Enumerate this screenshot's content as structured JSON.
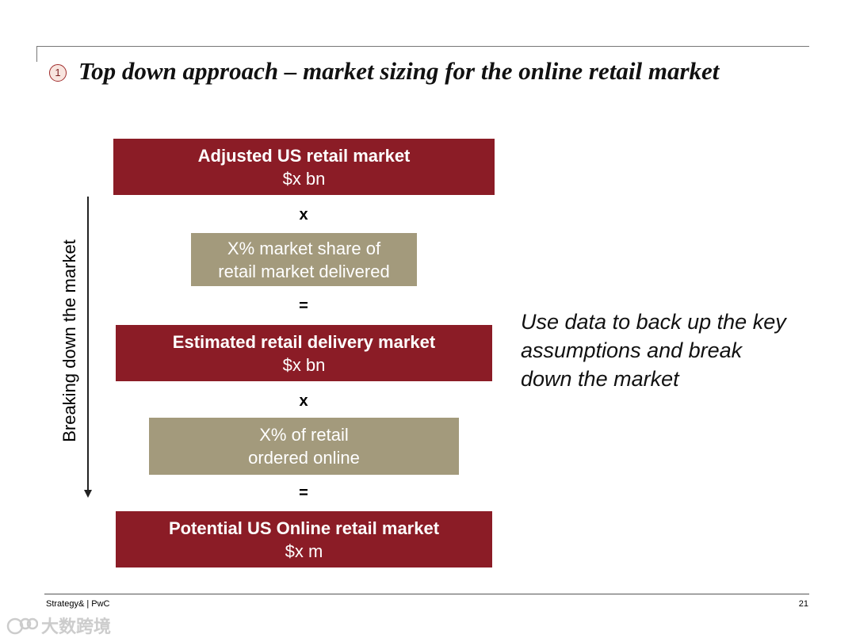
{
  "slide": {
    "step_number": "1",
    "title": "Top down approach – market sizing for the online retail market"
  },
  "flow": {
    "boxes": [
      {
        "line1": "Adjusted US retail market",
        "line2": "$x bn"
      },
      {
        "line1": "X% market share of",
        "line2": "retail market delivered"
      },
      {
        "line1": "Estimated retail delivery market",
        "line2": "$x bn"
      },
      {
        "line1": "X% of retail",
        "line2": "ordered online"
      },
      {
        "line1": "Potential US Online retail market",
        "line2": "$x m"
      }
    ],
    "operators": [
      "x",
      "=",
      "x",
      "="
    ],
    "side_label": "Breaking down the market"
  },
  "note": "Use data to back up the key assumptions and break down the market",
  "footer": {
    "source": "Strategy& | PwC",
    "page": "21"
  },
  "watermark": {
    "text": "大数跨境"
  },
  "colors": {
    "result_box": "#8b1c26",
    "factor_box": "#a39a7c"
  }
}
